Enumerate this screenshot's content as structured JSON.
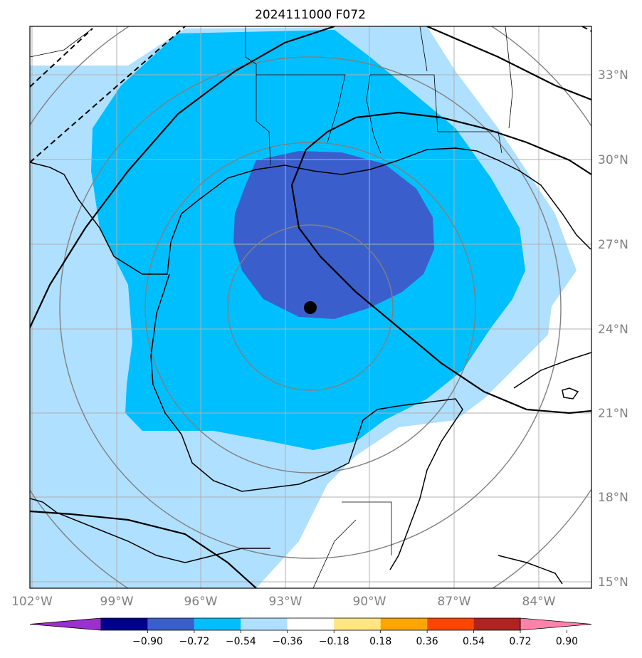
{
  "title": "2024111000 F072",
  "map": {
    "lat_ticks": [
      "33°N",
      "30°N",
      "27°N",
      "24°N",
      "21°N",
      "18°N",
      "15°N"
    ],
    "lon_ticks": [
      "102°W",
      "99°W",
      "96°W",
      "93°W",
      "90°W",
      "87°W",
      "84°W"
    ],
    "lat_values": [
      33,
      30,
      27,
      24,
      21,
      18,
      15
    ],
    "lon_values": [
      -102,
      -99,
      -96,
      -93,
      -90,
      -87,
      -84
    ],
    "grid": true,
    "center_marker": {
      "lon": -92.0,
      "lat": 24.7
    },
    "colors": {
      "band_light": "#b0e0ff",
      "band_mid": "#00bfff",
      "band_dark": "#3a5fcd",
      "coast": "#000000",
      "range_rings": "#808080",
      "gridline": "#b0b0b0"
    }
  },
  "colorbar": {
    "labels": [
      "−0.90",
      "−0.72",
      "−0.54",
      "−0.36",
      "−0.18",
      "0.18",
      "0.36",
      "0.54",
      "0.72",
      "0.90"
    ],
    "colors": [
      "#9b30d0",
      "#00008b",
      "#3a5fcd",
      "#00bfff",
      "#b0e0ff",
      "#ffffff",
      "#ffe680",
      "#ffa500",
      "#ff4500",
      "#b22222",
      "#ff82ab"
    ]
  }
}
